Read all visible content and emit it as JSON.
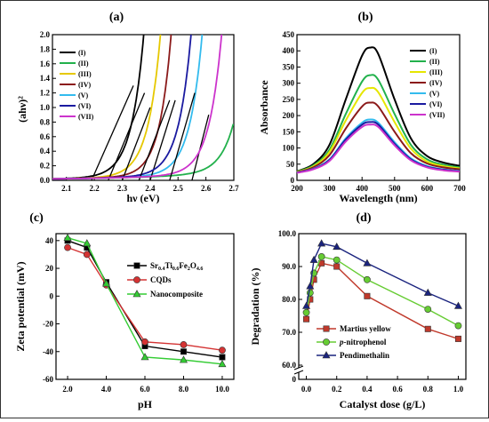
{
  "chart_data": [
    {
      "type": "line",
      "panel_label": "(a)",
      "xlabel": "hν (eV)",
      "ylabel": "(ahν)²",
      "xlim": [
        2.05,
        2.7
      ],
      "ylim": [
        0.0,
        2.0
      ],
      "xticks": [
        2.1,
        2.2,
        2.3,
        2.4,
        2.5,
        2.6,
        2.7
      ],
      "xtick_labels": [
        "2.1",
        "2.2",
        "2.3",
        "2.4",
        "2.5",
        "2.6",
        "2.7"
      ],
      "yticks": [
        0.0,
        0.2,
        0.4,
        0.6,
        0.8,
        1.0,
        1.2,
        1.4,
        1.6,
        1.8,
        2.0
      ],
      "ytick_labels": [
        "0.0",
        "0.2",
        "0.4",
        "0.6",
        "0.8",
        "1.0",
        "1.2",
        "1.4",
        "1.6",
        "1.8",
        "2.0"
      ],
      "legend_position": "top-left",
      "series": [
        {
          "name": "(I)",
          "color": "#000000",
          "Eg": 2.19,
          "steep": 0.16,
          "fit_end": [
            2.34,
            1.3
          ]
        },
        {
          "name": "(II)",
          "color": "#22b14c",
          "Eg": 2.55,
          "steep": 0.17,
          "fit_end": [
            2.61,
            0.9
          ]
        },
        {
          "name": "(III)",
          "color": "#e6c800",
          "Eg": 2.25,
          "steep": 0.16,
          "fit_end": [
            2.38,
            1.2
          ]
        },
        {
          "name": "(IV)",
          "color": "#8b1a1a",
          "Eg": 2.3,
          "steep": 0.15,
          "fit_end": [
            2.4,
            1.0
          ]
        },
        {
          "name": "(V)",
          "color": "#33bbee",
          "Eg": 2.4,
          "steep": 0.16,
          "fit_end": [
            2.49,
            1.1
          ]
        },
        {
          "name": "(VI)",
          "color": "#1a1aa0",
          "Eg": 2.36,
          "steep": 0.16,
          "fit_end": [
            2.47,
            1.1
          ]
        },
        {
          "name": "(VII)",
          "color": "#cc33cc",
          "Eg": 2.47,
          "steep": 0.16,
          "fit_end": [
            2.56,
            1.2
          ]
        }
      ]
    },
    {
      "type": "line",
      "panel_label": "(b)",
      "xlabel": "Wavelength (nm)",
      "ylabel": "Absorbance",
      "xlim": [
        200,
        700
      ],
      "ylim": [
        0,
        450
      ],
      "xticks": [
        200,
        300,
        400,
        500,
        600,
        700
      ],
      "xtick_labels": [
        "200",
        "300",
        "400",
        "500",
        "600",
        "700"
      ],
      "yticks": [
        0,
        50,
        100,
        150,
        200,
        250,
        300,
        350,
        400,
        450
      ],
      "ytick_labels": [
        "0",
        "50",
        "100",
        "150",
        "200",
        "250",
        "300",
        "350",
        "400",
        "450"
      ],
      "legend_position": "top-right",
      "x": [
        200,
        250,
        300,
        350,
        400,
        425,
        450,
        500,
        550,
        600,
        650,
        700
      ],
      "series": [
        {
          "name": "(I)",
          "color": "#000000",
          "values": [
            28,
            50,
            110,
            250,
            385,
            410,
            390,
            250,
            130,
            75,
            55,
            45
          ]
        },
        {
          "name": "(II)",
          "color": "#22b14c",
          "values": [
            27,
            46,
            95,
            205,
            305,
            325,
            310,
            205,
            110,
            65,
            48,
            40
          ]
        },
        {
          "name": "(III)",
          "color": "#e6e600",
          "values": [
            26,
            43,
            88,
            185,
            270,
            285,
            272,
            180,
            98,
            58,
            44,
            37
          ]
        },
        {
          "name": "(IV)",
          "color": "#8b1a1a",
          "values": [
            25,
            40,
            78,
            160,
            228,
            240,
            228,
            150,
            84,
            52,
            40,
            34
          ]
        },
        {
          "name": "(V)",
          "color": "#33bbee",
          "values": [
            24,
            36,
            65,
            130,
            178,
            188,
            178,
            118,
            68,
            44,
            34,
            29
          ]
        },
        {
          "name": "(VI)",
          "color": "#1a1aa0",
          "values": [
            24,
            35,
            63,
            126,
            172,
            180,
            172,
            113,
            65,
            42,
            33,
            28
          ]
        },
        {
          "name": "(VII)",
          "color": "#cc33cc",
          "values": [
            23,
            34,
            60,
            120,
            165,
            172,
            165,
            108,
            62,
            40,
            31,
            27
          ]
        }
      ]
    },
    {
      "type": "line",
      "panel_label": "(c)",
      "xlabel": "pH",
      "ylabel": "Zeta potential (mV)",
      "xlim": [
        1.4,
        10.6
      ],
      "ylim": [
        -60,
        45
      ],
      "xticks": [
        2,
        4,
        6,
        8,
        10
      ],
      "xtick_labels": [
        "2.0",
        "4.0",
        "6.0",
        "8.0",
        "10.0"
      ],
      "yticks": [
        -60,
        -40,
        -20,
        0,
        20,
        40
      ],
      "ytick_labels": [
        "-60",
        "-40",
        "-20",
        "0",
        "20",
        "40"
      ],
      "legend_position": "center-right",
      "x": [
        2,
        3,
        4,
        6,
        8,
        10
      ],
      "series": [
        {
          "name_parts": [
            "Sr",
            "0.4",
            "Ti",
            "0.6",
            "Fe",
            "2",
            "O",
            "4.6"
          ],
          "color": "#000000",
          "marker": "square",
          "values": [
            40,
            35,
            10,
            -36,
            -40,
            -44
          ]
        },
        {
          "name": "CQDs",
          "color": "#d43333",
          "marker": "circle",
          "values": [
            35,
            30,
            8,
            -33,
            -35,
            -39
          ]
        },
        {
          "name": "Nanocomposite",
          "color": "#33cc33",
          "marker": "triangle",
          "values": [
            42,
            38,
            9,
            -44,
            -46,
            -49
          ]
        }
      ]
    },
    {
      "type": "line",
      "panel_label": "(d)",
      "xlabel": "Catalyst dose (g/L)",
      "ylabel": "Degradation (%)",
      "xlim": [
        -0.05,
        1.05
      ],
      "ylim_upper": [
        60,
        100
      ],
      "axis_break_label": "0",
      "xticks": [
        0.0,
        0.2,
        0.4,
        0.6,
        0.8,
        1.0
      ],
      "xtick_labels": [
        "0.0",
        "0.2",
        "0.4",
        "0.6",
        "0.8",
        "1.0"
      ],
      "yticks": [
        60,
        70,
        80,
        90,
        100
      ],
      "ytick_labels": [
        "60.0",
        "70.0",
        "80.0",
        "90.0",
        "100.0"
      ],
      "legend_position": "bottom-center",
      "x": [
        0.0,
        0.025,
        0.05,
        0.1,
        0.2,
        0.4,
        0.8,
        1.0
      ],
      "series": [
        {
          "name": "Martius yellow",
          "color": "#c0392b",
          "marker": "square",
          "values": [
            74,
            80,
            86,
            91,
            90,
            81,
            71,
            68
          ]
        },
        {
          "name": "p-nitrophenol",
          "name_italic": "p",
          "name_rest": "-nitrophenol",
          "color": "#66cc33",
          "marker": "circle",
          "values": [
            76,
            82,
            88,
            93,
            92,
            86,
            77,
            72
          ]
        },
        {
          "name": "Pendimethalin",
          "color": "#1a237e",
          "marker": "triangle",
          "values": [
            78,
            84,
            92,
            97,
            96,
            91,
            82,
            78
          ]
        }
      ]
    }
  ]
}
